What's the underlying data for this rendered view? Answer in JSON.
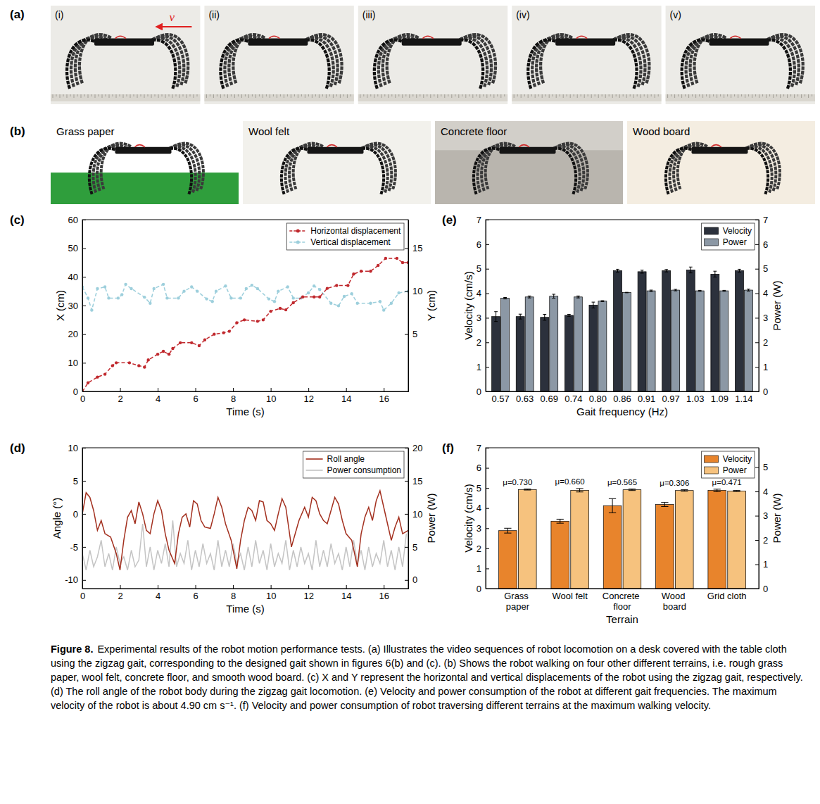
{
  "figure": {
    "panel_labels": [
      "(a)",
      "(b)",
      "(c)",
      "(d)",
      "(e)",
      "(f)"
    ],
    "photo_sequence": {
      "frames": [
        "(i)",
        "(ii)",
        "(iii)",
        "(iv)",
        "(v)"
      ],
      "arrow_label": "v"
    },
    "terrain_photos": [
      "Grass paper",
      "Wool felt",
      "Concrete floor",
      "Wood board"
    ],
    "caption_number": "Figure 8.",
    "caption": "Experimental results of the robot motion performance tests. (a) Illustrates the video sequences of robot locomotion on a desk covered with the table cloth using the zigzag gait, corresponding to the designed gait shown in figures 6(b) and (c). (b) Shows the robot walking on four other different terrains, i.e. rough grass paper, wool felt, concrete floor, and smooth wood board. (c) X and Y represent the horizontal and vertical displacements of the robot using the zigzag gait, respectively. (d) The roll angle of the robot body during the zigzag gait locomotion. (e) Velocity and power consumption of the robot at different gait frequencies. The maximum velocity of the robot is about 4.90 cm s⁻¹. (f) Velocity and power consumption of robot traversing different terrains at the maximum walking velocity."
  },
  "chart_data": [
    {
      "type": "line",
      "xlabel": "Time (s)",
      "ylabel": "X (cm)",
      "y2label": "Y (cm)",
      "xlim": [
        0,
        17.3
      ],
      "xticks": [
        0,
        2,
        4,
        6,
        8,
        10,
        12,
        14,
        16
      ],
      "ylim": [
        0,
        60
      ],
      "yticks": [
        0,
        10,
        20,
        30,
        40,
        50,
        60
      ],
      "y2lim": [
        -1.67,
        18.33
      ],
      "y2ticks": [
        5,
        10,
        15
      ],
      "legend": "upper right",
      "series": [
        {
          "name": "Horizontal displacement",
          "color": "#c0282d",
          "line_style": "dashed",
          "marker": "circle",
          "x": [
            0,
            0.3,
            0.8,
            1.2,
            1.6,
            1.8,
            2.5,
            3.0,
            3.3,
            3.5,
            4.0,
            4.3,
            4.6,
            4.8,
            5.2,
            5.8,
            6.2,
            6.5,
            7.0,
            7.5,
            7.8,
            8.2,
            8.6,
            9.3,
            9.6,
            10.0,
            10.5,
            10.8,
            11.2,
            11.7,
            12.3,
            12.6,
            13.0,
            13.5,
            14.1,
            14.4,
            14.8,
            15.3,
            15.7,
            16.1,
            16.7,
            17.0,
            17.3
          ],
          "values": [
            0,
            3,
            5,
            6,
            9,
            10,
            10,
            9,
            8.5,
            11,
            13,
            14,
            13,
            15,
            17,
            17,
            16,
            18,
            20,
            20.5,
            21,
            24,
            25,
            24.5,
            25,
            28,
            29,
            28.5,
            31,
            33,
            33,
            33,
            36,
            37,
            37,
            41,
            42,
            42,
            44,
            46.5,
            46.5,
            45,
            45
          ]
        },
        {
          "name": "Vertical displacement",
          "color": "#9dcfdc",
          "line_style": "dashed",
          "marker": "circle",
          "axis": "y2",
          "x": [
            0,
            0.3,
            0.5,
            0.8,
            1.2,
            1.4,
            1.9,
            2.1,
            2.3,
            2.6,
            3.3,
            3.6,
            3.8,
            4.3,
            4.5,
            5.1,
            5.4,
            5.8,
            6.1,
            6.6,
            6.9,
            7.1,
            7.6,
            7.9,
            8.4,
            8.7,
            9.0,
            9.3,
            9.9,
            10.2,
            10.4,
            10.9,
            11.2,
            11.6,
            12.0,
            12.3,
            12.6,
            13.2,
            13.6,
            13.9,
            14.3,
            14.6,
            15.3,
            15.8,
            16.0,
            16.4,
            16.8,
            17.3
          ],
          "values": [
            10.5,
            9.2,
            7.8,
            10.3,
            10.5,
            9.2,
            9.2,
            9.6,
            10.8,
            10.3,
            9.3,
            8.6,
            10.3,
            10.8,
            9.2,
            9.2,
            10,
            10.5,
            10.0,
            9.1,
            8.8,
            10,
            10.6,
            9.2,
            9.2,
            10.3,
            10.7,
            10.3,
            9.1,
            8.8,
            10,
            10.5,
            9.2,
            9.2,
            9.8,
            10.6,
            10.2,
            8.6,
            8.3,
            9.4,
            9.7,
            8.6,
            8.6,
            8.8,
            7.8,
            8.6,
            9.8,
            10
          ]
        }
      ]
    },
    {
      "type": "line",
      "xlabel": "Time (s)",
      "ylabel": "Angle (°)",
      "y2label": "Power (W)",
      "xlim": [
        0,
        17.3
      ],
      "xticks": [
        0,
        2,
        4,
        6,
        8,
        10,
        12,
        14,
        16
      ],
      "ylim": [
        -11.3,
        10
      ],
      "yticks": [
        -10,
        -5,
        0,
        5,
        10
      ],
      "y2lim": [
        -1.3,
        20
      ],
      "y2ticks": [
        0,
        5,
        10,
        15,
        20
      ],
      "legend": "upper right",
      "series": [
        {
          "name": "Roll angle",
          "color": "#a3301f",
          "line_style": "solid",
          "x": [
            0,
            0.2,
            0.4,
            0.6,
            0.8,
            1.0,
            1.2,
            1.5,
            1.8,
            2.0,
            2.2,
            2.4,
            2.6,
            2.8,
            3.0,
            3.2,
            3.4,
            3.6,
            3.8,
            4.0,
            4.2,
            4.4,
            4.6,
            4.9,
            5.1,
            5.3,
            5.5,
            5.7,
            5.9,
            6.1,
            6.3,
            6.5,
            6.8,
            7.0,
            7.2,
            7.4,
            7.6,
            7.9,
            8.2,
            8.4,
            8.6,
            8.8,
            9.0,
            9.2,
            9.4,
            9.6,
            9.8,
            10.0,
            10.2,
            10.4,
            10.6,
            10.8,
            11.1,
            11.3,
            11.5,
            11.8,
            12.0,
            12.2,
            12.4,
            12.6,
            12.8,
            13.0,
            13.2,
            13.4,
            13.6,
            13.8,
            14.0,
            14.3,
            14.6,
            14.8,
            15.0,
            15.2,
            15.4,
            15.6,
            15.8,
            16.0,
            16.2,
            16.4,
            16.6,
            16.8,
            17.0,
            17.3
          ],
          "values": [
            0,
            3.2,
            2.5,
            0.5,
            -2.5,
            -1,
            -3,
            -3.5,
            -6,
            -8.5,
            -4,
            -0.5,
            0.5,
            -1.5,
            1.8,
            0,
            -2.5,
            -3,
            0,
            2,
            0.5,
            -3,
            -5.5,
            -7.5,
            -3,
            -0.5,
            0,
            -2,
            2,
            1.5,
            -1,
            -2,
            -2.2,
            0,
            2.5,
            1,
            -1.5,
            -4,
            -8.3,
            -4,
            -1,
            1,
            0.5,
            -1,
            2,
            1.8,
            -1,
            -1.5,
            -2.5,
            0,
            2.3,
            1,
            -5,
            -3,
            -1,
            1,
            -0.5,
            2.5,
            2,
            0,
            -1,
            -1.5,
            0.5,
            2.5,
            1.5,
            -1,
            -3,
            -4,
            -8,
            -3,
            -0.5,
            1,
            -1,
            2,
            3.5,
            1,
            -1.5,
            -4,
            -2,
            -0.5,
            -3,
            -2.5
          ]
        },
        {
          "name": "Power consumption",
          "color": "#c4c4c4",
          "line_style": "solid",
          "axis": "y2",
          "x": [
            0,
            0.2,
            0.4,
            0.6,
            0.8,
            1,
            1.2,
            1.4,
            1.6,
            1.8,
            2,
            2.2,
            2.4,
            2.6,
            2.8,
            3,
            3.2,
            3.4,
            3.6,
            3.8,
            4,
            4.2,
            4.4,
            4.6,
            4.8,
            5,
            5.2,
            5.4,
            5.6,
            5.8,
            6,
            6.2,
            6.4,
            6.6,
            6.8,
            7,
            7.2,
            7.4,
            7.6,
            7.8,
            8,
            8.2,
            8.4,
            8.6,
            8.8,
            9,
            9.2,
            9.4,
            9.6,
            9.8,
            10,
            10.2,
            10.4,
            10.6,
            10.8,
            11,
            11.2,
            11.4,
            11.6,
            11.8,
            12,
            12.2,
            12.4,
            12.6,
            12.8,
            13,
            13.2,
            13.4,
            13.6,
            13.8,
            14,
            14.2,
            14.4,
            14.6,
            14.8,
            15,
            15.2,
            15.4,
            15.6,
            15.8,
            16,
            16.2,
            16.4,
            16.6,
            16.8,
            17,
            17.2
          ],
          "values": [
            4,
            1.5,
            4.5,
            2,
            3.5,
            6,
            2,
            4,
            1.5,
            5,
            2.5,
            3.5,
            1.5,
            4.5,
            2,
            3,
            8.5,
            2,
            5,
            1.5,
            4.5,
            2.5,
            5.5,
            2,
            9,
            2,
            4,
            2.5,
            6,
            1.5,
            4.5,
            2,
            5.5,
            2.5,
            4,
            1.5,
            6,
            2,
            4.5,
            2,
            5.5,
            2.5,
            4,
            1.5,
            5,
            2,
            6,
            2.5,
            4.5,
            1.5,
            5.5,
            2,
            4,
            2.5,
            6,
            1.5,
            4.5,
            2,
            5,
            2.5,
            4,
            1.5,
            6,
            2,
            4.5,
            2,
            5.5,
            2.5,
            4,
            1.5,
            5,
            2,
            6,
            2.5,
            4.5,
            1.5,
            5,
            2,
            4,
            2.5,
            6,
            2,
            4.5,
            1.5,
            5,
            2,
            7
          ]
        }
      ]
    },
    {
      "type": "bar",
      "xlabel": "Gait frequency (Hz)",
      "ylabel": "Velocity (cm/s)",
      "y2label": "Power (W)",
      "categories": [
        "0.57",
        "0.63",
        "0.69",
        "0.74",
        "0.80",
        "0.86",
        "0.91",
        "0.97",
        "1.03",
        "1.09",
        "1.14"
      ],
      "ylim": [
        0,
        7
      ],
      "yticks": [
        0,
        1,
        2,
        3,
        4,
        5,
        6,
        7
      ],
      "y2lim": [
        0,
        7
      ],
      "y2ticks": [
        0,
        1,
        2,
        3,
        4,
        5,
        6,
        7
      ],
      "legend": "upper right",
      "series": [
        {
          "name": "Velocity",
          "color": "#2c313c",
          "values": [
            3.05,
            3.05,
            3.02,
            3.1,
            3.52,
            4.92,
            4.88,
            4.92,
            4.95,
            4.78,
            4.92
          ],
          "errors": [
            0.2,
            0.1,
            0.12,
            0.04,
            0.12,
            0.06,
            0.06,
            0.05,
            0.12,
            0.12,
            0.06
          ]
        },
        {
          "name": "Power",
          "color": "#8c98a5",
          "axis": "y2",
          "values": [
            3.8,
            3.85,
            3.88,
            3.85,
            3.68,
            4.03,
            4.1,
            4.13,
            4.1,
            4.1,
            4.13
          ],
          "errors": [
            0.03,
            0.04,
            0.08,
            0.04,
            0.02,
            0.01,
            0.03,
            0.03,
            0.02,
            0.02,
            0.04
          ]
        }
      ]
    },
    {
      "type": "bar",
      "xlabel": "Terrain",
      "ylabel": "Velocity (cm/s)",
      "y2label": "Power (W)",
      "categories": [
        "Grass paper",
        "Wool felt",
        "Concrete floor",
        "Wood board",
        "Grid cloth"
      ],
      "annotations": [
        "μ=0.730",
        "μ=0.660",
        "μ=0.565",
        "μ=0.306",
        "μ=0.471"
      ],
      "ylim": [
        0,
        7
      ],
      "yticks": [
        0,
        1,
        2,
        3,
        4,
        5,
        6,
        7
      ],
      "y2lim": [
        0,
        5.8
      ],
      "y2ticks": [
        0,
        1,
        2,
        3,
        4,
        5
      ],
      "legend": "upper right",
      "series": [
        {
          "name": "Velocity",
          "color": "#e8842c",
          "values": [
            2.88,
            3.35,
            4.12,
            4.18,
            4.88
          ],
          "errors": [
            0.12,
            0.1,
            0.35,
            0.1,
            0.06
          ]
        },
        {
          "name": "Power",
          "color": "#f6c27e",
          "axis": "y2",
          "values": [
            4.08,
            4.05,
            4.07,
            4.04,
            4.02
          ],
          "errors": [
            0.02,
            0.07,
            0.03,
            0.03,
            0.02
          ]
        }
      ]
    }
  ]
}
